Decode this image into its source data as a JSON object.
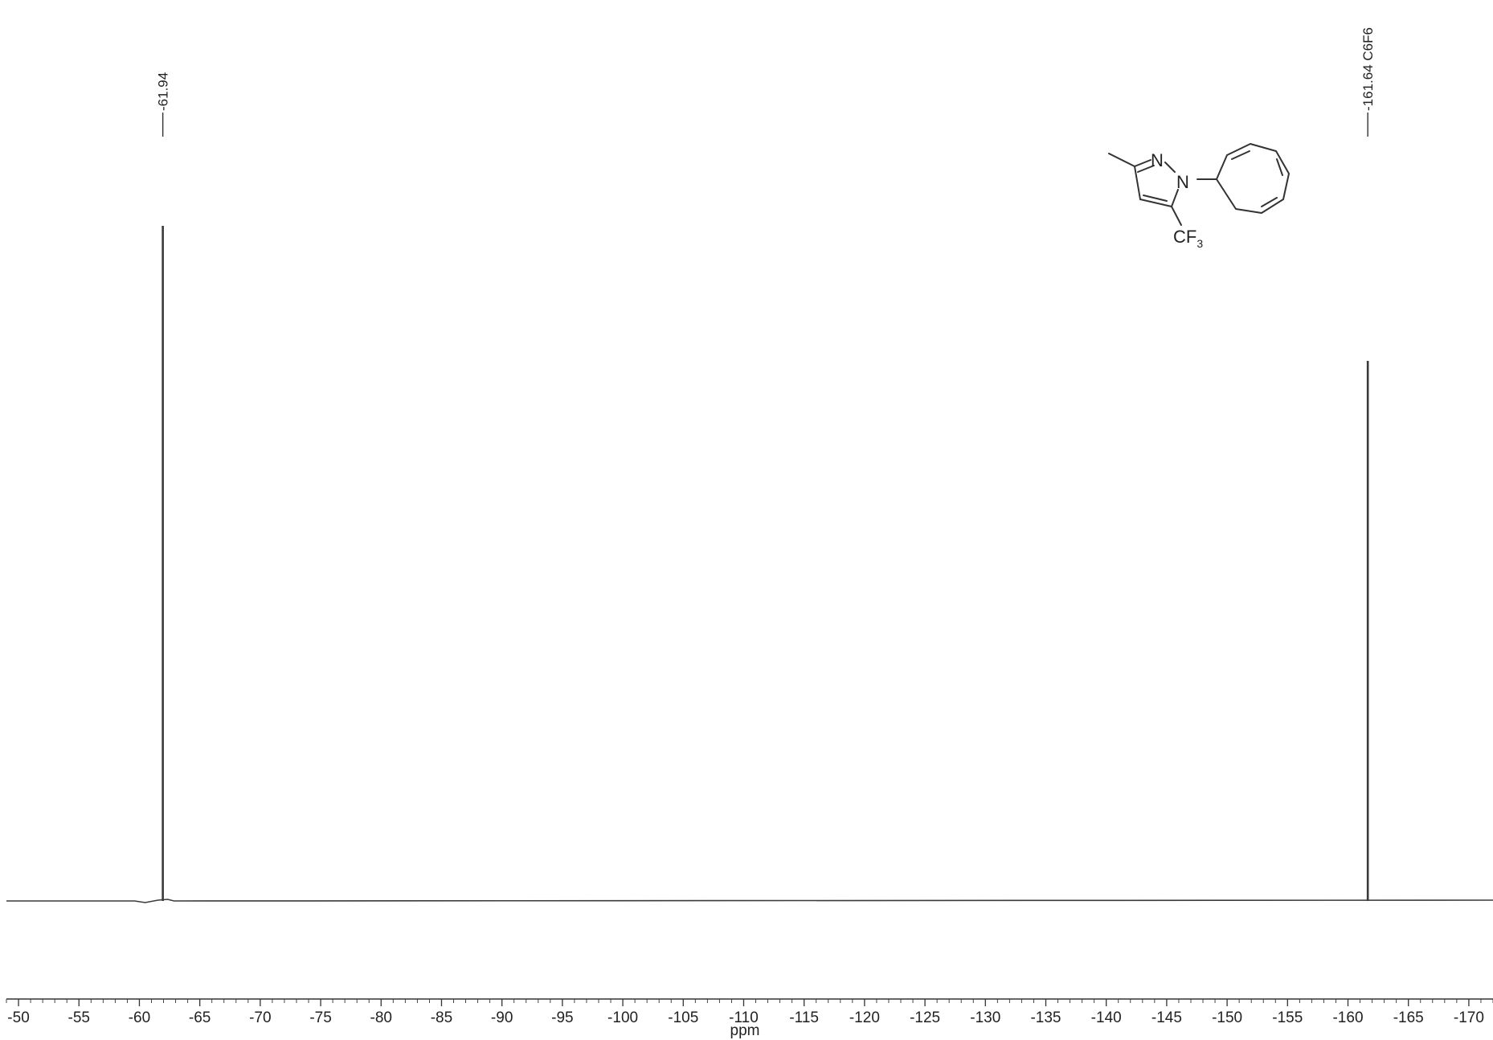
{
  "chart_data": {
    "type": "line",
    "title": "",
    "xlabel": "ppm",
    "ylabel": "",
    "xlim": [
      -49,
      -172
    ],
    "x_reversed": true,
    "grid": false,
    "legend": "none",
    "x_ticks": [
      -50,
      -55,
      -60,
      -65,
      -70,
      -75,
      -80,
      -85,
      -90,
      -95,
      -100,
      -105,
      -110,
      -115,
      -120,
      -125,
      -130,
      -135,
      -140,
      -145,
      -150,
      -155,
      -160,
      -165,
      -170
    ],
    "x_tick_labels": [
      "-50",
      "-55",
      "-60",
      "-65",
      "-70",
      "-75",
      "-80",
      "-85",
      "-90",
      "-95",
      "-100",
      "-105",
      "-110",
      "-115",
      "-120",
      "-125",
      "-130",
      "-135",
      "-140",
      "-145",
      "-150",
      "-155",
      "-160",
      "-165",
      "-170"
    ],
    "baseline": 0,
    "peaks": [
      {
        "x": -61.94,
        "intensity": 1.0,
        "label": "-61.94"
      },
      {
        "x": -161.64,
        "intensity": 0.8,
        "label": "-161.64 C6F6"
      }
    ],
    "series_color": "#3a3a3a"
  },
  "structure": {
    "atom_n2": "N",
    "atom_n1": "N",
    "group_cf": "CF",
    "group_sub": "3"
  }
}
